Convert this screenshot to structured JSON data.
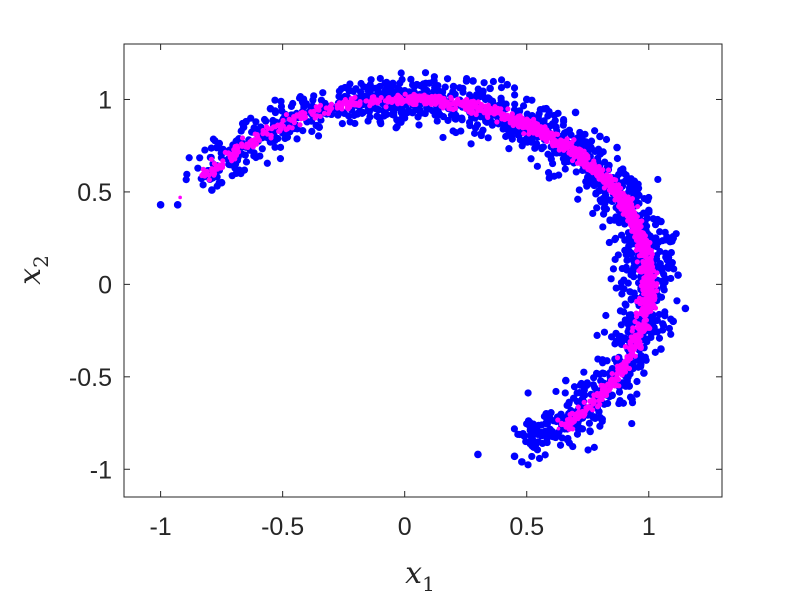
{
  "chart_data": {
    "type": "scatter",
    "title": "",
    "xlabel": {
      "symbol": "x",
      "subscript": "1"
    },
    "ylabel": {
      "symbol": "x",
      "subscript": "2"
    },
    "xlim": [
      -1.15,
      1.3
    ],
    "ylim": [
      -1.15,
      1.3
    ],
    "xticks": [
      -1,
      -0.5,
      0,
      0.5,
      1
    ],
    "xtick_labels": [
      "-1",
      "-0.5",
      "0",
      "0.5",
      "1"
    ],
    "yticks": [
      -1,
      -0.5,
      0,
      0.5,
      1
    ],
    "ytick_labels": [
      "-1",
      "-0.5",
      "0",
      "0.5",
      "1"
    ],
    "grid": false,
    "box": true,
    "series": [
      {
        "color": "#0000ff",
        "marker": "filled-circle",
        "distribution": "noisy arc around unit circle, angle -70 to 155 degrees, dense near 45-90 degrees",
        "points": [
          [
            -1.0,
            0.43
          ],
          [
            -0.93,
            0.43
          ],
          [
            -0.79,
            0.51
          ],
          [
            -0.75,
            0.55
          ],
          [
            -0.72,
            0.65
          ],
          [
            -0.77,
            0.74
          ],
          [
            -0.7,
            0.7
          ],
          [
            -0.66,
            0.85
          ],
          [
            -0.65,
            0.88
          ],
          [
            -0.59,
            0.85
          ],
          [
            -0.55,
            0.95
          ],
          [
            -0.56,
            0.83
          ],
          [
            -0.55,
            0.77
          ],
          [
            -0.5,
            0.82
          ],
          [
            -0.45,
            0.9
          ],
          [
            -0.4,
            0.88
          ],
          [
            -0.35,
            0.85
          ],
          [
            -0.3,
            0.92
          ],
          [
            -0.2,
            0.97
          ],
          [
            -0.15,
            1.05
          ],
          [
            -0.1,
            0.88
          ],
          [
            -0.05,
            0.92
          ],
          [
            -0.02,
            1.05
          ],
          [
            0.05,
            1.08
          ],
          [
            0.1,
            0.95
          ],
          [
            0.12,
            1.1
          ],
          [
            0.2,
            1.07
          ],
          [
            0.28,
            1.1
          ],
          [
            0.35,
            1.06
          ],
          [
            0.4,
            0.9
          ],
          [
            0.42,
            1.08
          ],
          [
            0.5,
            1.0
          ],
          [
            0.52,
            0.78
          ],
          [
            0.58,
            0.95
          ],
          [
            0.62,
            0.85
          ],
          [
            0.66,
            0.7
          ],
          [
            0.7,
            0.93
          ],
          [
            0.72,
            0.8
          ],
          [
            0.75,
            0.58
          ],
          [
            0.78,
            0.72
          ],
          [
            0.8,
            0.8
          ],
          [
            0.83,
            0.63
          ],
          [
            0.85,
            0.45
          ],
          [
            0.87,
            0.74
          ],
          [
            0.9,
            0.35
          ],
          [
            0.92,
            0.55
          ],
          [
            0.95,
            0.5
          ],
          [
            1.0,
            0.4
          ],
          [
            1.02,
            0.22
          ],
          [
            1.05,
            0.34
          ],
          [
            1.08,
            0.1
          ],
          [
            1.1,
            0.25
          ],
          [
            1.12,
            0.05
          ],
          [
            1.15,
            -0.13
          ],
          [
            1.1,
            -0.2
          ],
          [
            1.05,
            -0.35
          ],
          [
            0.98,
            -0.48
          ],
          [
            0.92,
            -0.55
          ],
          [
            0.85,
            -0.6
          ],
          [
            0.8,
            -0.72
          ],
          [
            0.75,
            -0.68
          ],
          [
            0.72,
            -0.78
          ],
          [
            0.68,
            -0.77
          ],
          [
            0.3,
            -0.92
          ],
          [
            0.45,
            -0.93
          ],
          [
            0.48,
            -0.96
          ],
          [
            0.49,
            -0.82
          ],
          [
            0.58,
            -0.7
          ],
          [
            0.66,
            -0.52
          ]
        ]
      },
      {
        "color": "#ff00ff",
        "marker": "dot",
        "distribution": "tight arc on unit circle, angle -50 to 150 degrees, dense near 10-90 degrees",
        "points": [
          [
            -0.92,
            0.47
          ],
          [
            -0.75,
            0.65
          ],
          [
            -0.6,
            0.8
          ],
          [
            -0.45,
            0.89
          ],
          [
            -0.3,
            0.95
          ],
          [
            -0.1,
            0.99
          ],
          [
            0.1,
            0.99
          ],
          [
            0.3,
            0.95
          ],
          [
            0.5,
            0.87
          ],
          [
            0.7,
            0.71
          ],
          [
            0.85,
            0.52
          ],
          [
            0.95,
            0.3
          ],
          [
            0.99,
            0.1
          ],
          [
            0.99,
            -0.1
          ],
          [
            0.95,
            -0.28
          ],
          [
            0.88,
            -0.48
          ],
          [
            0.78,
            -0.63
          ],
          [
            0.7,
            -0.72
          ],
          [
            0.63,
            -0.78
          ]
        ]
      }
    ]
  }
}
